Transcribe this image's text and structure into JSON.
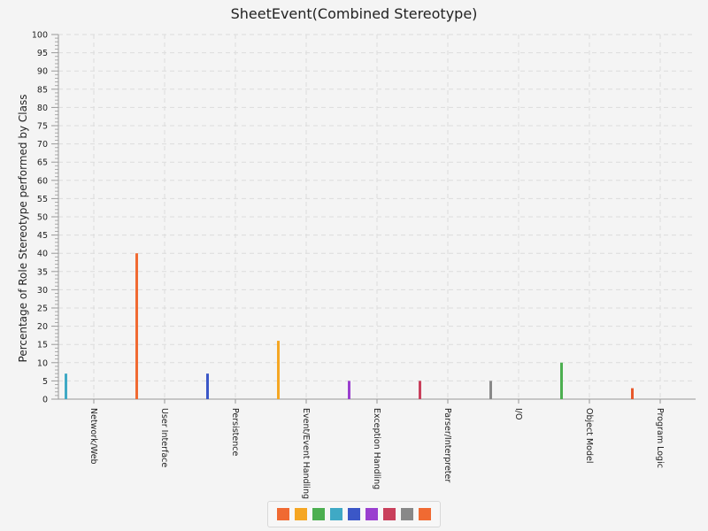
{
  "chart_data": {
    "type": "bar",
    "title": "SheetEvent(Combined Stereotype)",
    "xlabel": "",
    "ylabel": "Percentage of Role Stereotype performed by Class",
    "ylim": [
      0,
      100
    ],
    "ytick_step": 5,
    "grid": true,
    "legend_position": "bottom",
    "categories": [
      "Network/Web",
      "User Interface",
      "Persistence",
      "Event/Event Handling",
      "Exception Handling",
      "Parser/Interpreter",
      "I/O",
      "Object Model",
      "Program Logic"
    ],
    "values": [
      7,
      40,
      7,
      16,
      5,
      5,
      5,
      10,
      3
    ],
    "colors": [
      "#3fa9c5",
      "#f06a32",
      "#3b57c7",
      "#f5a623",
      "#9a3fcf",
      "#c9405c",
      "#888888",
      "#4caf50",
      "#e8582b"
    ],
    "legend_colors": [
      "#f06a32",
      "#f5a623",
      "#4caf50",
      "#3fa9c5",
      "#3b57c7",
      "#9a3fcf",
      "#c9405c",
      "#888888",
      "#f06a32"
    ]
  }
}
